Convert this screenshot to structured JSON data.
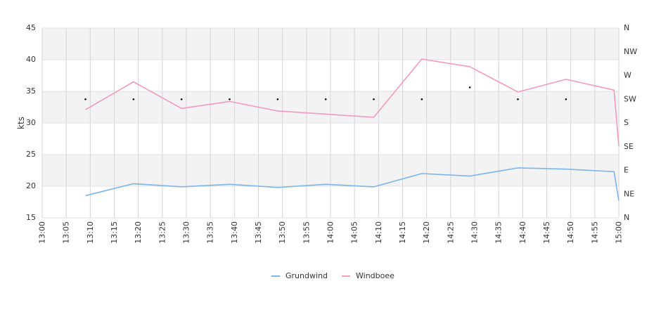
{
  "chart_data": {
    "type": "line",
    "title": "",
    "xlabel": "",
    "ylabel": "kts",
    "ylim": [
      15,
      45
    ],
    "yticks": [
      "15",
      "20",
      "25",
      "30",
      "35",
      "40",
      "45"
    ],
    "xticks": [
      "13:00",
      "13:05",
      "13:10",
      "13:15",
      "13:20",
      "13:25",
      "13:30",
      "13:35",
      "13:40",
      "13:45",
      "13:50",
      "13:55",
      "14:00",
      "14:05",
      "14:10",
      "14:15",
      "14:20",
      "14:25",
      "14:30",
      "14:35",
      "14:40",
      "14:45",
      "14:50",
      "14:55",
      "15:00"
    ],
    "x_range": [
      "13:00",
      "15:00"
    ],
    "direction_axis": {
      "labels": [
        "N",
        "NE",
        "E",
        "SE",
        "S",
        "SW",
        "W",
        "NW",
        "N"
      ],
      "range_degrees": [
        0,
        360
      ]
    },
    "grid": true,
    "legend_position": "bottom",
    "series": [
      {
        "name": "Grundwind",
        "color": "#7cb5ec",
        "x": [
          "13:09",
          "13:19",
          "13:29",
          "13:39",
          "13:49",
          "13:59",
          "14:09",
          "14:19",
          "14:29",
          "14:39",
          "14:49",
          "14:59",
          "15:00"
        ],
        "values": [
          18.5,
          20.4,
          19.9,
          20.3,
          19.8,
          20.3,
          19.9,
          22.0,
          21.6,
          22.9,
          22.7,
          22.3,
          17.7
        ]
      },
      {
        "name": "Windboee",
        "color": "#f29ac0",
        "x": [
          "13:09",
          "13:19",
          "13:29",
          "13:39",
          "13:49",
          "13:59",
          "14:09",
          "14:19",
          "14:29",
          "14:39",
          "14:49",
          "14:59",
          "15:00"
        ],
        "values": [
          32.1,
          36.5,
          32.3,
          33.4,
          31.9,
          31.4,
          30.9,
          40.1,
          38.9,
          34.9,
          36.9,
          35.2,
          26.3
        ]
      }
    ],
    "direction_points": {
      "x": [
        "13:09",
        "13:19",
        "13:29",
        "13:39",
        "13:49",
        "13:59",
        "14:09",
        "14:19",
        "14:29",
        "14:39",
        "14:49"
      ],
      "degrees": [
        225,
        225,
        225,
        225,
        225,
        225,
        225,
        225,
        247.5,
        225,
        225
      ]
    }
  }
}
